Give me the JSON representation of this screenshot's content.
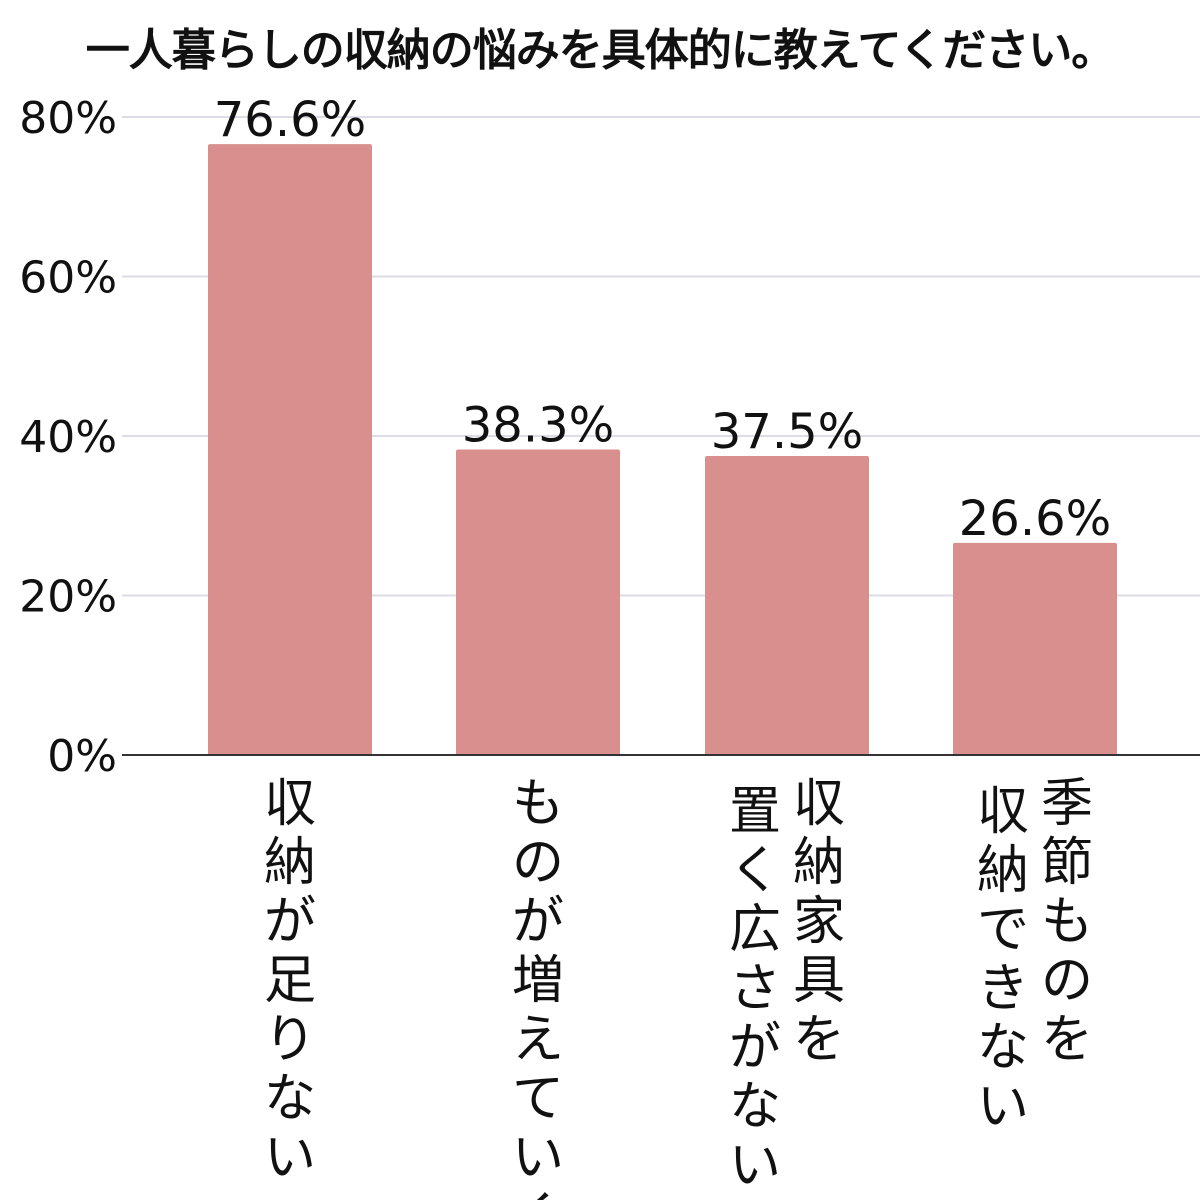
{
  "chart_data": {
    "type": "bar",
    "title": "一人暮らしの収納の悩みを具体的に教えてください。",
    "categories": [
      [
        "収納が足りない"
      ],
      [
        "ものが増えていく"
      ],
      [
        "収納家具を",
        "置く広さがない"
      ],
      [
        "季節ものを",
        "収納できない"
      ]
    ],
    "values": [
      76.6,
      38.3,
      37.5,
      26.6
    ],
    "data_labels": [
      "76.6%",
      "38.3%",
      "37.5%",
      "26.6%"
    ],
    "yticks": [
      0,
      20,
      40,
      60,
      80
    ],
    "ytick_labels": [
      "0%",
      "20%",
      "40%",
      "60%",
      "80%"
    ],
    "ylim": [
      0,
      80
    ],
    "grid": true,
    "colors": {
      "bar": "#d98f8e",
      "grid": "#dcdce6",
      "axis": "#333333"
    }
  }
}
